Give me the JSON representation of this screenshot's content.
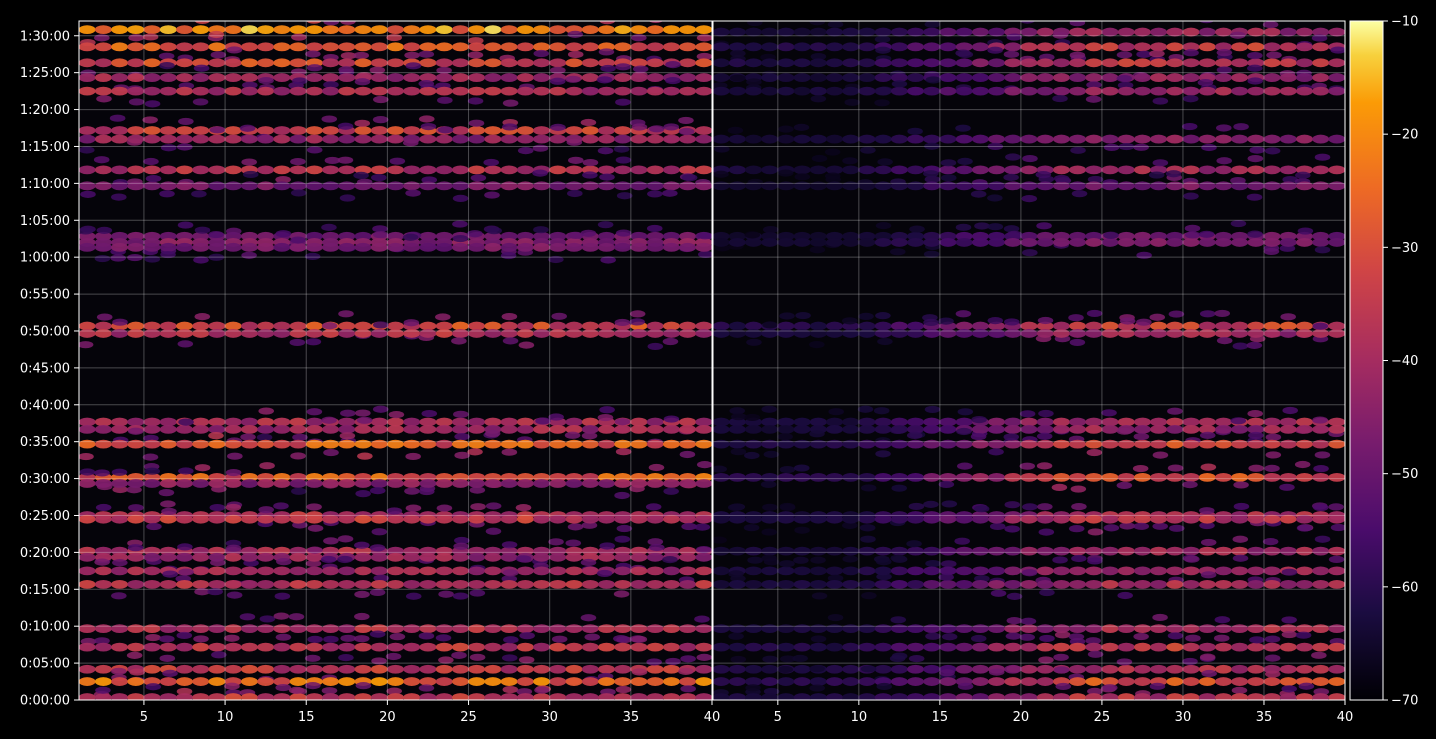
{
  "chart_data": {
    "type": "heatmap",
    "colormap": "inferno",
    "background": "#000000",
    "grid": true,
    "y_ticks": [
      "0:00:00",
      "0:05:00",
      "0:10:00",
      "0:15:00",
      "0:20:00",
      "0:25:00",
      "0:30:00",
      "0:35:00",
      "0:40:00",
      "0:45:00",
      "0:50:00",
      "0:55:00",
      "1:00:00",
      "1:05:00",
      "1:10:00",
      "1:15:00",
      "1:20:00",
      "1:25:00",
      "1:30:00"
    ],
    "y_range_seconds": [
      0,
      5520
    ],
    "colorbar": {
      "ticks": [
        "−10",
        "−20",
        "−30",
        "−40",
        "−50",
        "−60",
        "−70"
      ],
      "range": [
        -70,
        -10
      ]
    },
    "panels": [
      {
        "x_ticks": [
          "5",
          "10",
          "15",
          "20",
          "25",
          "30",
          "35",
          "40"
        ],
        "x_tick_values": [
          5,
          10,
          15,
          20,
          25,
          30,
          35,
          40
        ],
        "x_range": [
          1,
          40
        ],
        "bands": [
          {
            "t": 5450,
            "level": 0.88
          },
          {
            "t": 5310,
            "level": 0.74
          },
          {
            "t": 5180,
            "level": 0.68
          },
          {
            "t": 5060,
            "level": 0.52
          },
          {
            "t": 4950,
            "level": 0.55
          },
          {
            "t": 4630,
            "level": 0.65
          },
          {
            "t": 4560,
            "level": 0.48
          },
          {
            "t": 4310,
            "level": 0.58
          },
          {
            "t": 4180,
            "level": 0.4
          },
          {
            "t": 3770,
            "level": 0.38
          },
          {
            "t": 3720,
            "level": 0.44
          },
          {
            "t": 3680,
            "level": 0.4
          },
          {
            "t": 3040,
            "level": 0.68
          },
          {
            "t": 2980,
            "level": 0.58
          },
          {
            "t": 2260,
            "level": 0.55
          },
          {
            "t": 2200,
            "level": 0.52
          },
          {
            "t": 2080,
            "level": 0.74
          },
          {
            "t": 1810,
            "level": 0.75
          },
          {
            "t": 1760,
            "level": 0.45
          },
          {
            "t": 1500,
            "level": 0.58
          },
          {
            "t": 1470,
            "level": 0.62
          },
          {
            "t": 1210,
            "level": 0.55
          },
          {
            "t": 1160,
            "level": 0.5
          },
          {
            "t": 1050,
            "level": 0.52
          },
          {
            "t": 940,
            "level": 0.58
          },
          {
            "t": 580,
            "level": 0.58
          },
          {
            "t": 430,
            "level": 0.6
          },
          {
            "t": 250,
            "level": 0.62
          },
          {
            "t": 150,
            "level": 0.8
          },
          {
            "t": 20,
            "level": 0.62
          }
        ]
      },
      {
        "x_ticks": [
          "5",
          "10",
          "15",
          "20",
          "25",
          "30",
          "35",
          "40"
        ],
        "x_tick_values": [
          5,
          10,
          15,
          20,
          25,
          30,
          35,
          40
        ],
        "x_range": [
          1,
          40
        ],
        "bands": [
          {
            "t": 5430,
            "level": 0.5
          },
          {
            "t": 5310,
            "level": 0.62
          },
          {
            "t": 5180,
            "level": 0.6
          },
          {
            "t": 5060,
            "level": 0.48
          },
          {
            "t": 4950,
            "level": 0.5
          },
          {
            "t": 4560,
            "level": 0.45
          },
          {
            "t": 4310,
            "level": 0.52
          },
          {
            "t": 4180,
            "level": 0.4
          },
          {
            "t": 3770,
            "level": 0.38
          },
          {
            "t": 3720,
            "level": 0.4
          },
          {
            "t": 3040,
            "level": 0.66
          },
          {
            "t": 2980,
            "level": 0.52
          },
          {
            "t": 2260,
            "level": 0.55
          },
          {
            "t": 2200,
            "level": 0.5
          },
          {
            "t": 2080,
            "level": 0.7
          },
          {
            "t": 1810,
            "level": 0.7
          },
          {
            "t": 1500,
            "level": 0.55
          },
          {
            "t": 1470,
            "level": 0.58
          },
          {
            "t": 1210,
            "level": 0.52
          },
          {
            "t": 1050,
            "level": 0.5
          },
          {
            "t": 940,
            "level": 0.55
          },
          {
            "t": 580,
            "level": 0.55
          },
          {
            "t": 430,
            "level": 0.62
          },
          {
            "t": 250,
            "level": 0.58
          },
          {
            "t": 150,
            "level": 0.72
          },
          {
            "t": 20,
            "level": 0.58
          }
        ]
      }
    ]
  }
}
